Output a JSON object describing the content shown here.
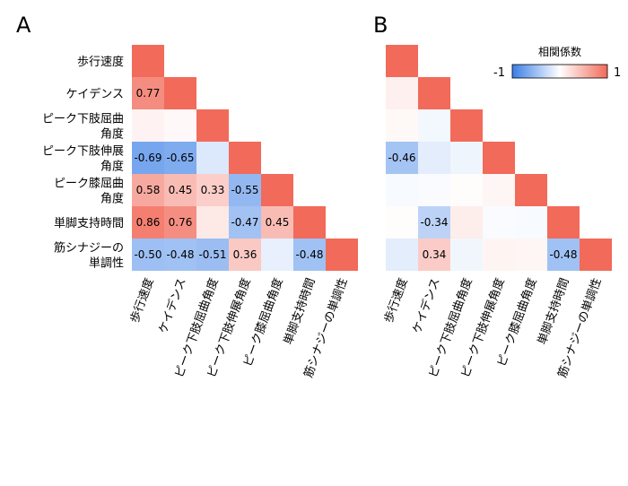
{
  "panels": {
    "a_label": "A",
    "b_label": "B"
  },
  "variables": [
    [
      "歩行速度"
    ],
    [
      "ケイデンス"
    ],
    [
      "ピーク下肢屈曲",
      "角度"
    ],
    [
      "ピーク下肢伸展",
      "角度"
    ],
    [
      "ピーク膝屈曲",
      "角度"
    ],
    [
      "単脚支持時間"
    ],
    [
      "筋シナジーの",
      "単調性"
    ]
  ],
  "x_labels": [
    "歩行速度",
    "ケイデンス",
    "ピーク下肢屈曲角度",
    "ピーク下肢伸展角度",
    "ピーク膝屈曲角度",
    "単脚支持時間",
    "筋シナジーの単調性"
  ],
  "legend": {
    "title": "相関係数",
    "min_label": "-1",
    "max_label": "1",
    "colors": {
      "negative": "#3a7ee6",
      "zero": "#ffffff",
      "positive": "#f26a5a",
      "diagonal": "#f26a5a"
    }
  },
  "chart_data": [
    {
      "type": "heatmap",
      "panel": "A",
      "matrix": [
        [
          1,
          null,
          null,
          null,
          null,
          null,
          null
        ],
        [
          0.77,
          1,
          null,
          null,
          null,
          null,
          null
        ],
        [
          0.08,
          0.04,
          1,
          null,
          null,
          null,
          null
        ],
        [
          -0.69,
          -0.65,
          -0.18,
          1,
          null,
          null,
          null
        ],
        [
          0.58,
          0.45,
          0.33,
          -0.55,
          1,
          null,
          null
        ],
        [
          0.86,
          0.76,
          0.15,
          -0.47,
          0.45,
          1,
          null
        ],
        [
          -0.5,
          -0.48,
          -0.51,
          0.36,
          -0.12,
          -0.48,
          1
        ]
      ],
      "labels": [
        [
          null,
          null,
          null,
          null,
          null,
          null,
          null
        ],
        [
          "0.77",
          null,
          null,
          null,
          null,
          null,
          null
        ],
        [
          null,
          null,
          null,
          null,
          null,
          null,
          null
        ],
        [
          "-0.69",
          "-0.65",
          null,
          null,
          null,
          null,
          null
        ],
        [
          "0.58",
          "0.45",
          "0.33",
          "-0.55",
          null,
          null,
          null
        ],
        [
          "0.86",
          "0.76",
          null,
          "-0.47",
          "0.45",
          null,
          null
        ],
        [
          "-0.50",
          "-0.48",
          "-0.51",
          "0.36",
          null,
          "-0.48",
          null
        ]
      ],
      "value_range": [
        -1,
        1
      ]
    },
    {
      "type": "heatmap",
      "panel": "B",
      "matrix": [
        [
          1,
          null,
          null,
          null,
          null,
          null,
          null
        ],
        [
          0.1,
          1,
          null,
          null,
          null,
          null,
          null
        ],
        [
          0.05,
          -0.06,
          1,
          null,
          null,
          null,
          null
        ],
        [
          -0.46,
          -0.14,
          -0.08,
          1,
          null,
          null,
          null
        ],
        [
          -0.04,
          -0.03,
          0.02,
          0.06,
          1,
          null,
          null
        ],
        [
          0.02,
          -0.34,
          0.12,
          -0.03,
          -0.04,
          1,
          null
        ],
        [
          -0.14,
          0.34,
          -0.07,
          0.07,
          0.06,
          -0.48,
          1
        ]
      ],
      "labels": [
        [
          null,
          null,
          null,
          null,
          null,
          null,
          null
        ],
        [
          null,
          null,
          null,
          null,
          null,
          null,
          null
        ],
        [
          null,
          null,
          null,
          null,
          null,
          null,
          null
        ],
        [
          "-0.46",
          null,
          null,
          null,
          null,
          null,
          null
        ],
        [
          null,
          null,
          null,
          null,
          null,
          null,
          null
        ],
        [
          null,
          "-0.34",
          null,
          null,
          null,
          null,
          null
        ],
        [
          null,
          "0.34",
          null,
          null,
          null,
          "-0.48",
          null
        ]
      ],
      "value_range": [
        -1,
        1
      ]
    }
  ]
}
